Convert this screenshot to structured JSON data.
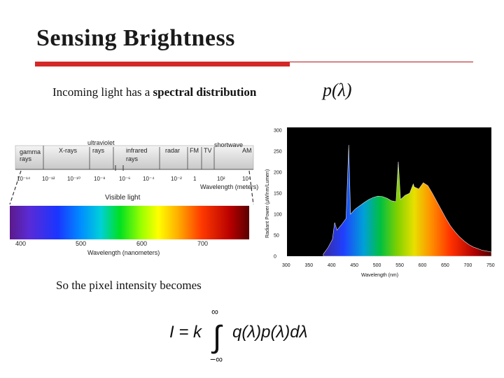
{
  "slide": {
    "title": "Sensing Brightness",
    "intro_prefix": "Incoming light has a ",
    "intro_bold": "spectral distribution",
    "spectral_symbol": "p(λ)",
    "after_text": "So the pixel intensity becomes",
    "equation": {
      "lhs": "I = k",
      "upper": "∞",
      "lower": "−∞",
      "integral": "∫",
      "integrand": "q(λ)p(λ)dλ"
    }
  },
  "em_spectrum": {
    "bands": [
      "gamma rays",
      "X-rays",
      "ultraviolet rays",
      "infrared rays",
      "radar",
      "FM",
      "TV",
      "shortwave",
      "AM"
    ],
    "ticks": [
      "10⁻¹⁴",
      "10⁻¹²",
      "10⁻¹⁰",
      "10⁻⁸",
      "10⁻⁶",
      "10⁻⁴",
      "10⁻²",
      "1",
      "10²",
      "10⁴"
    ],
    "wavelength_label": "Wavelength (meters)",
    "visible_label": "Visible light",
    "visible_ticks": [
      "400",
      "500",
      "600",
      "700"
    ],
    "visible_axis_label": "Wavelength (nanometers)"
  },
  "chart_data": {
    "type": "area",
    "xlabel": "Wavelength (nm)",
    "ylabel": "Radiant Power (µW/nm/Lumen)",
    "xlim": [
      300,
      750
    ],
    "ylim": [
      0,
      300
    ],
    "x_ticks": [
      300,
      350,
      400,
      450,
      500,
      550,
      600,
      650,
      700,
      750
    ],
    "y_ticks": [
      0,
      50,
      100,
      150,
      200,
      250,
      300
    ],
    "grid": false,
    "background": "#000000",
    "x": [
      380,
      390,
      400,
      405,
      410,
      420,
      430,
      436,
      440,
      450,
      460,
      470,
      480,
      490,
      500,
      510,
      520,
      530,
      540,
      545,
      550,
      560,
      570,
      578,
      580,
      590,
      600,
      610,
      620,
      630,
      640,
      650,
      660,
      670,
      680,
      690,
      700,
      710,
      720,
      730,
      740,
      750
    ],
    "y": [
      5,
      20,
      40,
      80,
      62,
      75,
      90,
      265,
      100,
      112,
      120,
      128,
      135,
      140,
      143,
      142,
      138,
      132,
      130,
      225,
      135,
      145,
      150,
      172,
      165,
      160,
      175,
      168,
      150,
      130,
      110,
      90,
      72,
      58,
      46,
      36,
      28,
      22,
      18,
      14,
      12,
      10
    ]
  }
}
